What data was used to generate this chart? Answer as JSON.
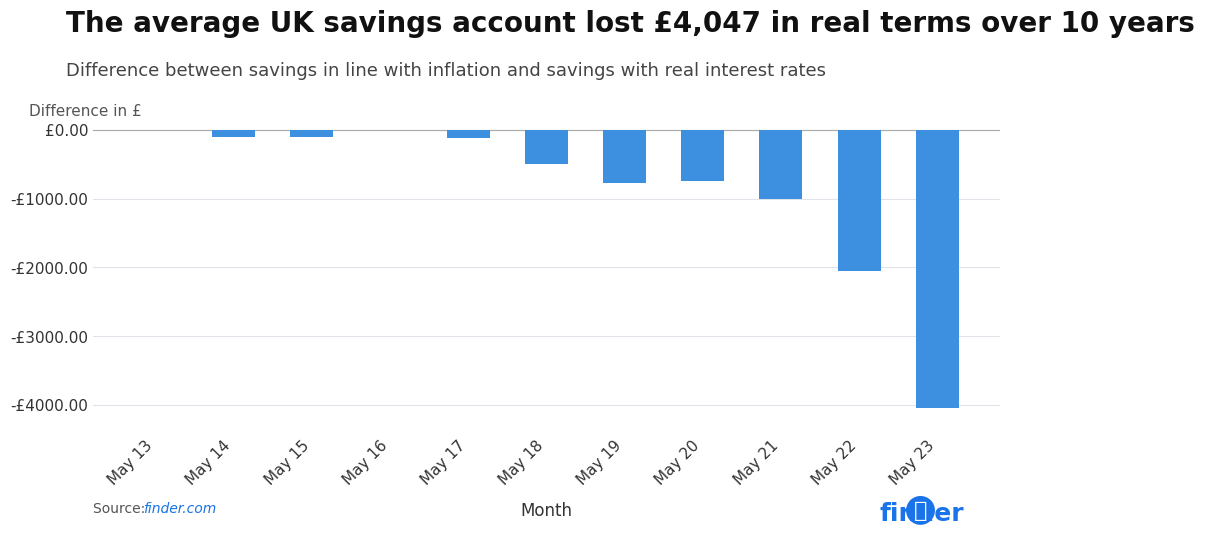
{
  "title": "The average UK savings account lost £4,047 in real terms over 10 years",
  "subtitle": "Difference between savings in line with inflation and savings with real interest rates",
  "ylabel": "Difference in £",
  "xlabel": "Month",
  "categories": [
    "May 13",
    "May 14",
    "May 15",
    "May 16",
    "May 17",
    "May 18",
    "May 19",
    "May 20",
    "May 21",
    "May 22",
    "May 23"
  ],
  "values": [
    -10,
    -110,
    -105,
    -5,
    -120,
    -500,
    -780,
    -740,
    -1000,
    -2050,
    -4047
  ],
  "bar_color": "#3d8fe0",
  "background_color": "#ffffff",
  "grid_color": "#e0e4ea",
  "title_fontsize": 20,
  "subtitle_fontsize": 13,
  "ylabel_fontsize": 11,
  "xlabel_fontsize": 12,
  "tick_fontsize": 11,
  "ylim": [
    -4400,
    200
  ],
  "yticks": [
    0,
    -1000,
    -2000,
    -3000,
    -4000
  ],
  "ytick_labels": [
    "£0.00",
    "-£1000.00",
    "-£2000.00",
    "-£3000.00",
    "-£4000.00"
  ],
  "source_text": "Source: ",
  "source_link": "finder.com",
  "finder_logo_color": "#1a73e8"
}
